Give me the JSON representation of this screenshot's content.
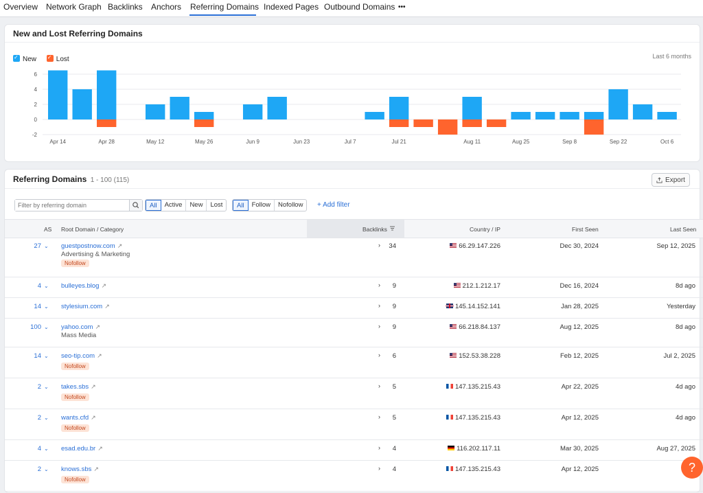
{
  "tabs": [
    {
      "label": "Overview"
    },
    {
      "label": "Network Graph"
    },
    {
      "label": "Backlinks"
    },
    {
      "label": "Anchors"
    },
    {
      "label": "Referring Domains"
    },
    {
      "label": "Indexed Pages"
    },
    {
      "label": "Outbound Domains"
    }
  ],
  "active_tab": "Referring Domains",
  "more_label": "•••",
  "chart_card": {
    "title": "New and Lost Referring Domains",
    "legend": [
      {
        "label": "New",
        "color": "#1ea7f5"
      },
      {
        "label": "Lost",
        "color": "#ff642d"
      }
    ],
    "period": "Last 6 months"
  },
  "chart_data": {
    "type": "bar",
    "title": "New and Lost Referring Domains",
    "x_tick_labels": [
      "Apr 14",
      "Apr 28",
      "May 12",
      "May 26",
      "Jun 9",
      "Jun 23",
      "Jul 7",
      "Jul 21",
      "Aug 11",
      "Aug 25",
      "Sep 8",
      "Sep 22",
      "Oct 6"
    ],
    "y_ticks": [
      -2,
      0,
      2,
      4,
      6
    ],
    "ylim": [
      -2,
      7
    ],
    "grid": true,
    "series": [
      {
        "name": "New",
        "color": "#1ea7f5",
        "values": [
          6.5,
          4,
          6.5,
          0,
          2,
          3,
          1,
          0,
          2,
          3,
          0,
          0,
          0,
          1,
          3,
          0,
          0,
          3,
          0,
          1,
          1,
          1,
          1,
          4,
          2,
          1
        ]
      },
      {
        "name": "Lost",
        "color": "#ff642d",
        "values": [
          0,
          0,
          -1,
          0,
          0,
          0,
          -1,
          0,
          0,
          0,
          0,
          0,
          0,
          0,
          -1,
          -1,
          -2,
          -1,
          -1,
          0,
          0,
          0,
          -2,
          0,
          0,
          0
        ]
      }
    ]
  },
  "table_card": {
    "title": "Referring Domains",
    "range": "1 - 100 (115)",
    "export_label": "Export",
    "search_placeholder": "Filter by referring domain",
    "status_filters": [
      "All",
      "Active",
      "New",
      "Lost"
    ],
    "follow_filters": [
      "All",
      "Follow",
      "Nofollow"
    ],
    "add_filter_label": "+ Add filter",
    "columns": {
      "as": "AS",
      "domain": "Root Domain / Category",
      "backlinks": "Backlinks",
      "country": "Country / IP",
      "first_seen": "First Seen",
      "last_seen": "Last Seen"
    },
    "rows": [
      {
        "as": "27",
        "domain": "guestpostnow.com",
        "category": "Advertising & Marketing",
        "badge": "Nofollow",
        "backlinks": "34",
        "flag": "US",
        "ip": "66.29.147.226",
        "first": "Dec 30, 2024",
        "last": "Sep 12, 2025"
      },
      {
        "as": "4",
        "domain": "bulleyes.blog",
        "category": "",
        "badge": "",
        "backlinks": "9",
        "flag": "US",
        "ip": "212.1.212.17",
        "first": "Dec 16, 2024",
        "last": "8d ago"
      },
      {
        "as": "14",
        "domain": "stylesium.com",
        "category": "",
        "badge": "",
        "backlinks": "9",
        "flag": "GB",
        "ip": "145.14.152.141",
        "first": "Jan 28, 2025",
        "last": "Yesterday"
      },
      {
        "as": "100",
        "domain": "yahoo.com",
        "category": "Mass Media",
        "badge": "",
        "backlinks": "9",
        "flag": "US",
        "ip": "66.218.84.137",
        "first": "Aug 12, 2025",
        "last": "8d ago"
      },
      {
        "as": "14",
        "domain": "seo-tip.com",
        "category": "",
        "badge": "Nofollow",
        "backlinks": "6",
        "flag": "US",
        "ip": "152.53.38.228",
        "first": "Feb 12, 2025",
        "last": "Jul 2, 2025"
      },
      {
        "as": "2",
        "domain": "takes.sbs",
        "category": "",
        "badge": "Nofollow",
        "backlinks": "5",
        "flag": "FR",
        "ip": "147.135.215.43",
        "first": "Apr 22, 2025",
        "last": "4d ago"
      },
      {
        "as": "2",
        "domain": "wants.cfd",
        "category": "",
        "badge": "Nofollow",
        "backlinks": "5",
        "flag": "FR",
        "ip": "147.135.215.43",
        "first": "Apr 12, 2025",
        "last": "4d ago"
      },
      {
        "as": "4",
        "domain": "esad.edu.br",
        "category": "",
        "badge": "",
        "backlinks": "4",
        "flag": "DE",
        "ip": "116.202.117.11",
        "first": "Mar 30, 2025",
        "last": "Aug 27, 2025"
      },
      {
        "as": "2",
        "domain": "knows.sbs",
        "category": "",
        "badge": "Nofollow",
        "backlinks": "4",
        "flag": "FR",
        "ip": "147.135.215.43",
        "first": "Apr 12, 2025",
        "last": "6d"
      }
    ]
  },
  "help_label": "?"
}
